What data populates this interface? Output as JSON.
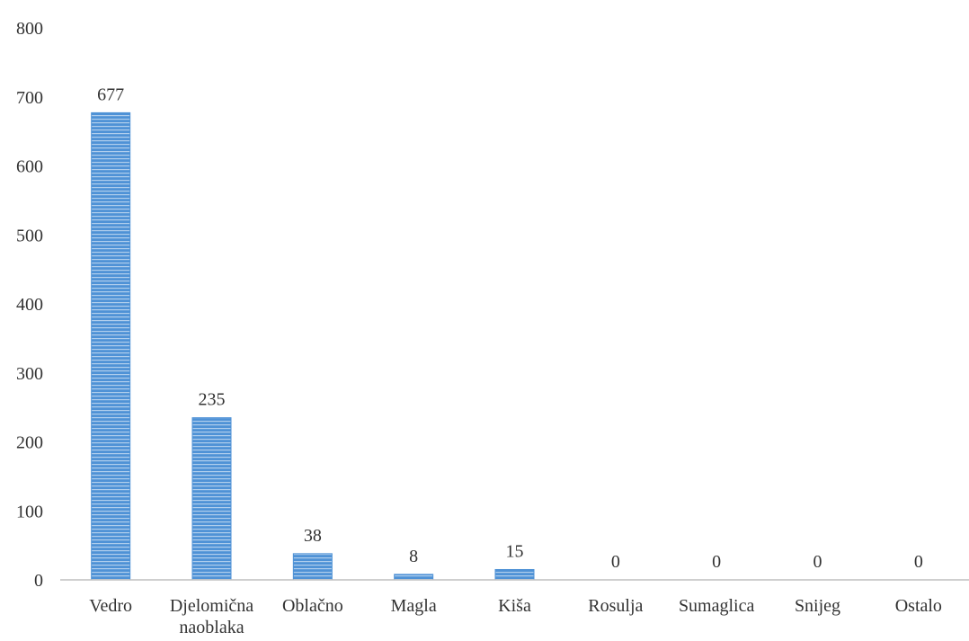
{
  "chart_data": {
    "type": "bar",
    "categories": [
      [
        "Vedro"
      ],
      [
        "Djelomična",
        "naoblaka"
      ],
      [
        "Oblačno"
      ],
      [
        "Magla"
      ],
      [
        "Kiša"
      ],
      [
        "Rosulja"
      ],
      [
        "Sumaglica"
      ],
      [
        "Snijeg"
      ],
      [
        "Ostalo"
      ]
    ],
    "values": [
      677,
      235,
      38,
      8,
      15,
      0,
      0,
      0,
      0
    ],
    "data_labels": [
      "677",
      "235",
      "38",
      "8",
      "15",
      "0",
      "0",
      "0",
      "0"
    ],
    "yticks": [
      "0",
      "100",
      "200",
      "300",
      "400",
      "500",
      "600",
      "700",
      "800"
    ],
    "ylim": [
      0,
      800
    ],
    "grid": false,
    "bar_color": "#4f92d6",
    "bar_stripe_color": "#ffffff",
    "axis_color": "#bfbfbf"
  }
}
